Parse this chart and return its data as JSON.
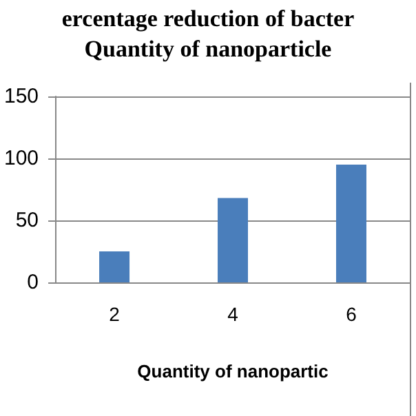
{
  "chart_data": {
    "type": "bar",
    "title": "ercentage reduction of bacter",
    "subtitle": "Quantity of nanoparticle",
    "xlabel": "Quantity of nanopartic",
    "categories": [
      "2",
      "4",
      "6"
    ],
    "values": [
      25,
      68,
      95
    ],
    "color": "#4a7ebb",
    "ylim": [
      0,
      150
    ],
    "yticks": [
      0,
      50,
      100,
      150
    ],
    "grid": "y"
  }
}
